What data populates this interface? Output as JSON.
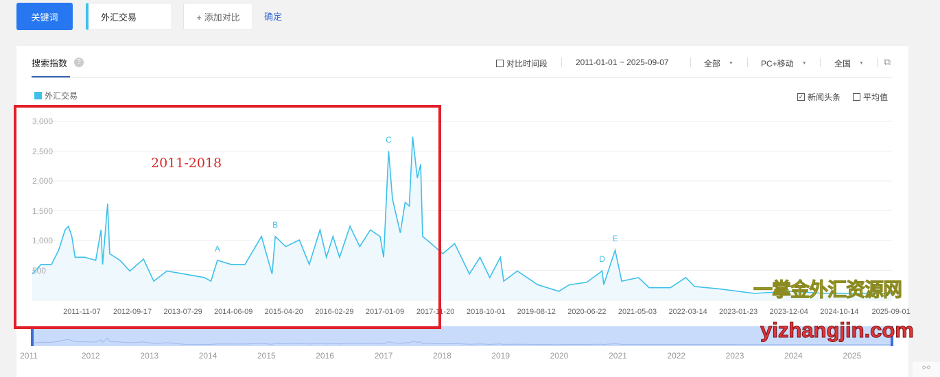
{
  "toolbar": {
    "keyword_button": "关键词",
    "keyword_value": "外汇交易",
    "add_compare": "+ 添加对比",
    "confirm": "确定"
  },
  "panel": {
    "tab": "搜索指数",
    "help": "?",
    "compare_period": "对比时间段",
    "date_range": "2011-01-01 ~ 2025-09-07",
    "source": "全部",
    "device": "PC+移动",
    "region": "全国",
    "news_headlines": "新闻头条",
    "news_checked": true,
    "average": "平均值",
    "average_checked": false
  },
  "overlay": {
    "red_box_label": "2011-2018",
    "watermark_cn": "一掌金外汇资源网",
    "watermark_url": "yizhangjin.com"
  },
  "colors": {
    "series": "#3ec0ea",
    "accent": "#2778f0",
    "red_box": "#e2202a"
  },
  "chart_data": {
    "type": "area",
    "legend": [
      {
        "name": "外汇交易",
        "color": "#3ec0ea"
      }
    ],
    "legend_placement": "top-left",
    "ylim": [
      0,
      3000
    ],
    "yticks": [
      "500",
      "1,000",
      "1,500",
      "2,000",
      "2,500",
      "3,000"
    ],
    "xlim": [
      "2011-01-01",
      "2025-09-07"
    ],
    "xticks": [
      "2011-11-07",
      "2012-09-17",
      "2013-07-29",
      "2014-06-09",
      "2015-04-20",
      "2016-02-29",
      "2017-01-09",
      "2017-11-20",
      "2018-10-01",
      "2019-08-12",
      "2020-06-22",
      "2021-05-03",
      "2022-03-14",
      "2023-01-23",
      "2023-12-04",
      "2024-10-14",
      "2025-09-01"
    ],
    "grid": true,
    "series": [
      {
        "name": "外汇交易",
        "points": [
          [
            "2011-01-01",
            440
          ],
          [
            "2011-02-25",
            600
          ],
          [
            "2011-05-01",
            600
          ],
          [
            "2011-06-15",
            840
          ],
          [
            "2011-07-25",
            1180
          ],
          [
            "2011-08-15",
            1240
          ],
          [
            "2011-09-05",
            1070
          ],
          [
            "2011-09-25",
            720
          ],
          [
            "2011-11-25",
            720
          ],
          [
            "2012-02-01",
            670
          ],
          [
            "2012-03-05",
            1180
          ],
          [
            "2012-03-15",
            600
          ],
          [
            "2012-04-15",
            1620
          ],
          [
            "2012-04-28",
            780
          ],
          [
            "2012-07-01",
            670
          ],
          [
            "2012-09-01",
            490
          ],
          [
            "2012-11-25",
            690
          ],
          [
            "2013-01-28",
            320
          ],
          [
            "2013-04-20",
            490
          ],
          [
            "2013-08-05",
            440
          ],
          [
            "2013-12-10",
            380
          ],
          [
            "2014-01-20",
            320
          ],
          [
            "2014-03-01",
            670
          ],
          [
            "2014-05-25",
            600
          ],
          [
            "2014-08-20",
            600
          ],
          [
            "2014-12-01",
            1070
          ],
          [
            "2015-02-05",
            440
          ],
          [
            "2015-02-25",
            1070
          ],
          [
            "2015-05-01",
            900
          ],
          [
            "2015-07-25",
            1010
          ],
          [
            "2015-09-25",
            600
          ],
          [
            "2015-12-01",
            1180
          ],
          [
            "2016-01-10",
            720
          ],
          [
            "2016-02-20",
            1070
          ],
          [
            "2016-04-01",
            720
          ],
          [
            "2016-06-05",
            1240
          ],
          [
            "2016-08-05",
            900
          ],
          [
            "2016-10-10",
            1180
          ],
          [
            "2016-12-10",
            1070
          ],
          [
            "2017-01-01",
            720
          ],
          [
            "2017-02-01",
            2500
          ],
          [
            "2017-02-25",
            1700
          ],
          [
            "2017-04-15",
            1130
          ],
          [
            "2017-05-15",
            1640
          ],
          [
            "2017-06-10",
            1580
          ],
          [
            "2017-07-01",
            2740
          ],
          [
            "2017-07-30",
            2050
          ],
          [
            "2017-08-20",
            2280
          ],
          [
            "2017-09-01",
            1070
          ],
          [
            "2017-10-25",
            950
          ],
          [
            "2018-01-05",
            780
          ],
          [
            "2018-03-20",
            950
          ],
          [
            "2018-06-20",
            440
          ],
          [
            "2018-08-25",
            720
          ],
          [
            "2018-10-25",
            380
          ],
          [
            "2018-12-30",
            720
          ],
          [
            "2019-01-20",
            320
          ],
          [
            "2019-04-15",
            490
          ],
          [
            "2019-08-20",
            260
          ],
          [
            "2019-12-30",
            150
          ],
          [
            "2020-03-05",
            260
          ],
          [
            "2020-06-20",
            300
          ],
          [
            "2020-09-25",
            490
          ],
          [
            "2020-10-05",
            260
          ],
          [
            "2020-12-15",
            840
          ],
          [
            "2021-01-25",
            320
          ],
          [
            "2021-05-10",
            380
          ],
          [
            "2021-07-15",
            210
          ],
          [
            "2021-11-25",
            210
          ],
          [
            "2022-03-01",
            380
          ],
          [
            "2022-04-25",
            230
          ],
          [
            "2022-09-25",
            190
          ],
          [
            "2023-05-01",
            115
          ],
          [
            "2023-12-05",
            150
          ],
          [
            "2024-07-15",
            115
          ],
          [
            "2025-09-07",
            115
          ]
        ]
      }
    ],
    "annotations": [
      {
        "label": "A",
        "date": "2014-03-01",
        "value": 670
      },
      {
        "label": "B",
        "date": "2015-02-25",
        "value": 1070
      },
      {
        "label": "C",
        "date": "2017-02-01",
        "value": 2500
      },
      {
        "label": "D",
        "date": "2020-09-25",
        "value": 490
      },
      {
        "label": "E",
        "date": "2020-12-15",
        "value": 840
      }
    ],
    "navigator_years": [
      "2011",
      "2012",
      "2013",
      "2014",
      "2015",
      "2016",
      "2017",
      "2018",
      "2019",
      "2020",
      "2021",
      "2022",
      "2023",
      "2024",
      "2025"
    ]
  }
}
